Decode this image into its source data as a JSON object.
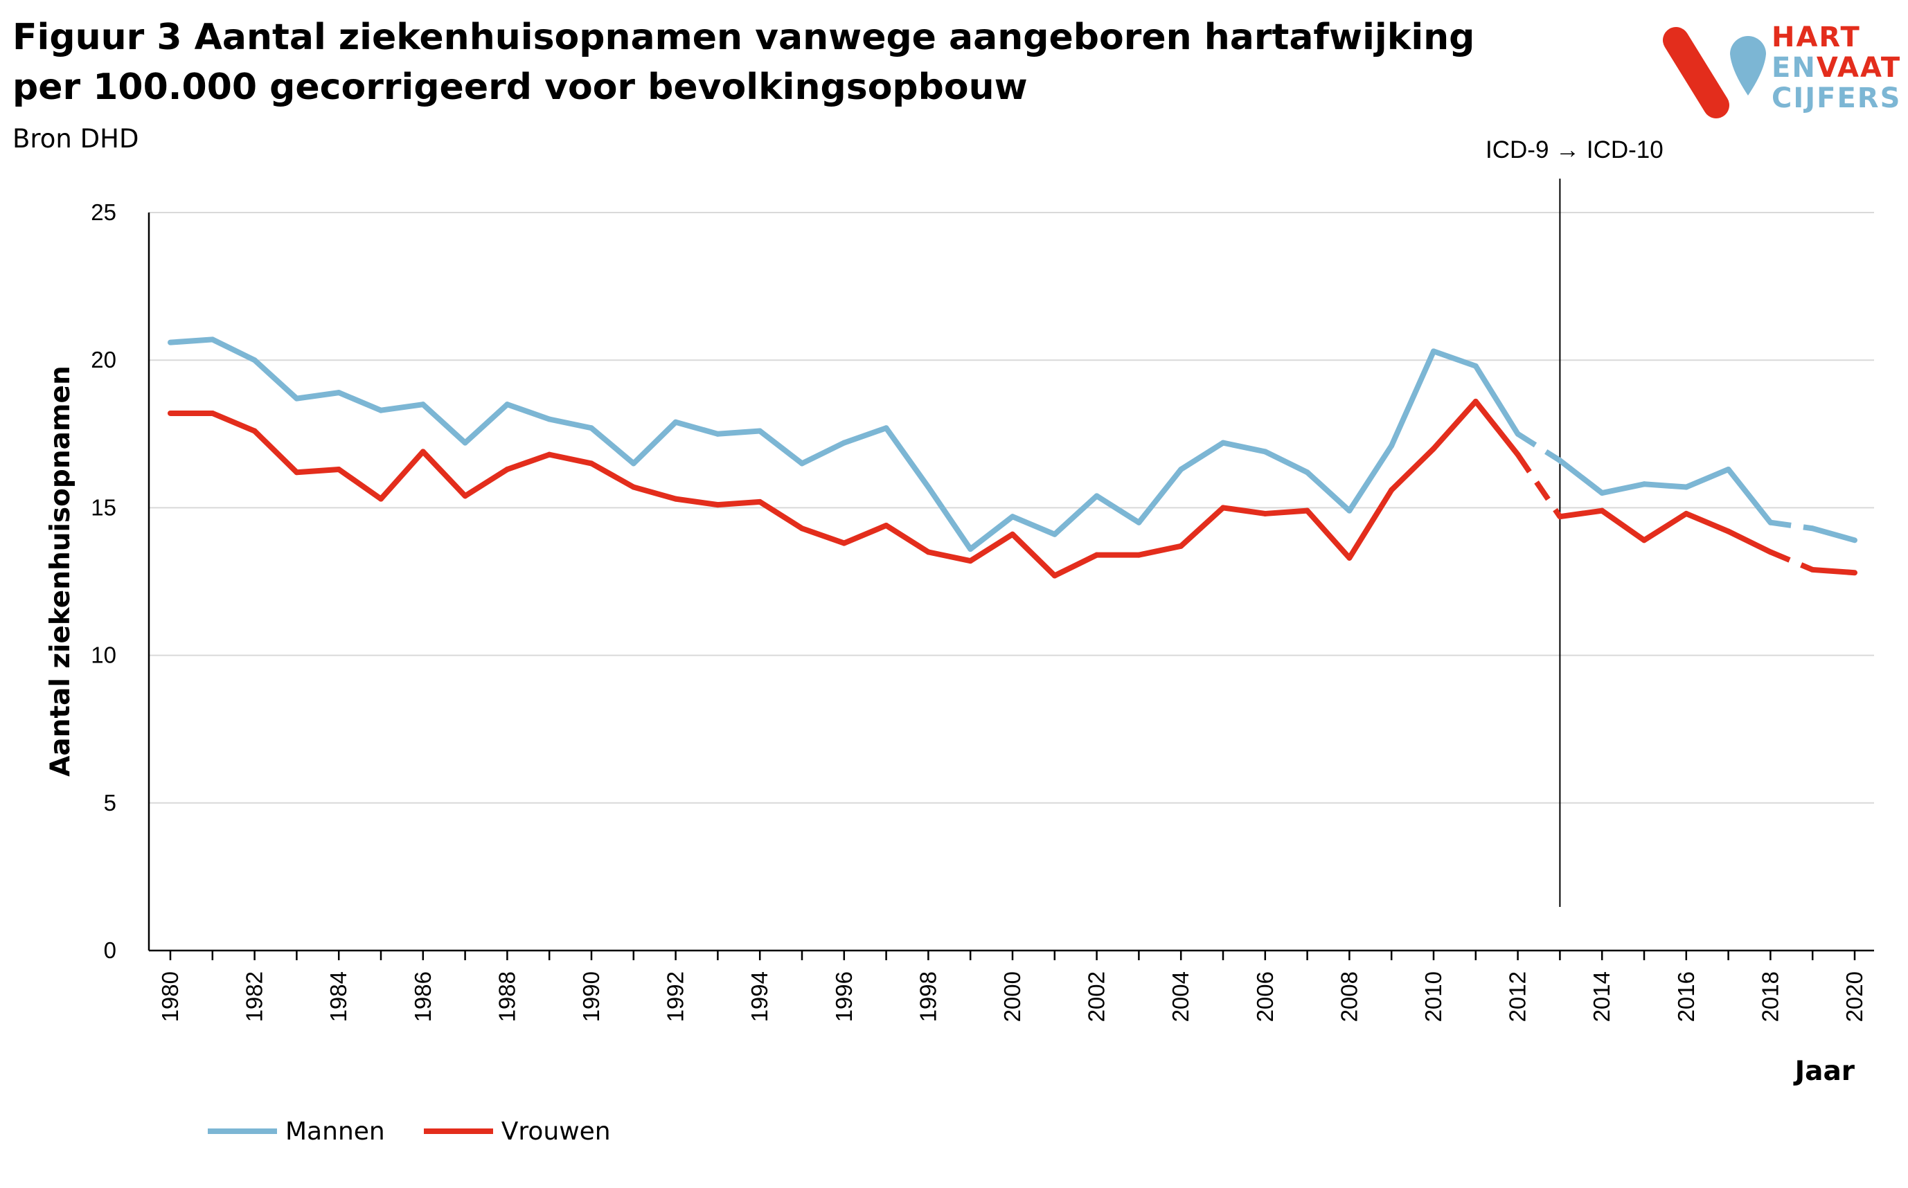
{
  "title": "Figuur 3 Aantal ziekenhuisopnamen vanwege aangeboren hartafwijking per 100.000 gecorrigeerd voor bevolkingsopbouw",
  "source": "Bron DHD",
  "logo": {
    "line1": "HART",
    "line2a": "EN",
    "line2b": "VAAT",
    "line3": "CIJFERS",
    "colors": {
      "red": "#e32d1c",
      "blue": "#7cb6d4"
    }
  },
  "chart_data": {
    "type": "line",
    "ylabel": "Aantal ziekenhuisopnamen",
    "xlabel": "Jaar",
    "ylim": [
      0,
      25
    ],
    "yticks": [
      0,
      5,
      10,
      15,
      20,
      25
    ],
    "xlim": [
      1980,
      2020
    ],
    "xticks": [
      1980,
      1982,
      1984,
      1986,
      1988,
      1990,
      1992,
      1994,
      1996,
      1998,
      2000,
      2002,
      2004,
      2006,
      2008,
      2010,
      2012,
      2014,
      2016,
      2018,
      2020
    ],
    "grid": "horizontal",
    "legend": "bottom-left",
    "annotation": {
      "text": "ICD-9 → ICD-10",
      "x": 2013
    },
    "dashed_segments": [
      [
        2012,
        2013
      ],
      [
        2018,
        2019
      ]
    ],
    "x": [
      1980,
      1981,
      1982,
      1983,
      1984,
      1985,
      1986,
      1987,
      1988,
      1989,
      1990,
      1991,
      1992,
      1993,
      1994,
      1995,
      1996,
      1997,
      1998,
      1999,
      2000,
      2001,
      2002,
      2003,
      2004,
      2005,
      2006,
      2007,
      2008,
      2009,
      2010,
      2011,
      2012,
      2013,
      2014,
      2015,
      2016,
      2017,
      2018,
      2019,
      2020
    ],
    "series": [
      {
        "name": "Mannen",
        "color": "#7cb6d4",
        "values": [
          20.6,
          20.7,
          20.0,
          18.7,
          18.9,
          18.3,
          18.5,
          17.2,
          18.5,
          18.0,
          17.7,
          16.5,
          17.9,
          17.5,
          17.6,
          16.5,
          17.2,
          17.7,
          15.7,
          13.6,
          14.7,
          14.1,
          15.4,
          14.5,
          16.3,
          17.2,
          16.9,
          16.2,
          14.9,
          17.1,
          20.3,
          19.8,
          17.5,
          16.6,
          15.5,
          15.8,
          15.7,
          16.3,
          14.5,
          14.3,
          13.9
        ]
      },
      {
        "name": "Vrouwen",
        "color": "#e32d1c",
        "values": [
          18.2,
          18.2,
          17.6,
          16.2,
          16.3,
          15.3,
          16.9,
          15.4,
          16.3,
          16.8,
          16.5,
          15.7,
          15.3,
          15.1,
          15.2,
          14.3,
          13.8,
          14.4,
          13.5,
          13.2,
          14.1,
          12.7,
          13.4,
          13.4,
          13.7,
          15.0,
          14.8,
          14.9,
          13.3,
          15.6,
          17.0,
          18.6,
          16.8,
          14.7,
          14.9,
          13.9,
          14.8,
          14.2,
          13.5,
          12.9,
          12.8
        ]
      }
    ]
  }
}
